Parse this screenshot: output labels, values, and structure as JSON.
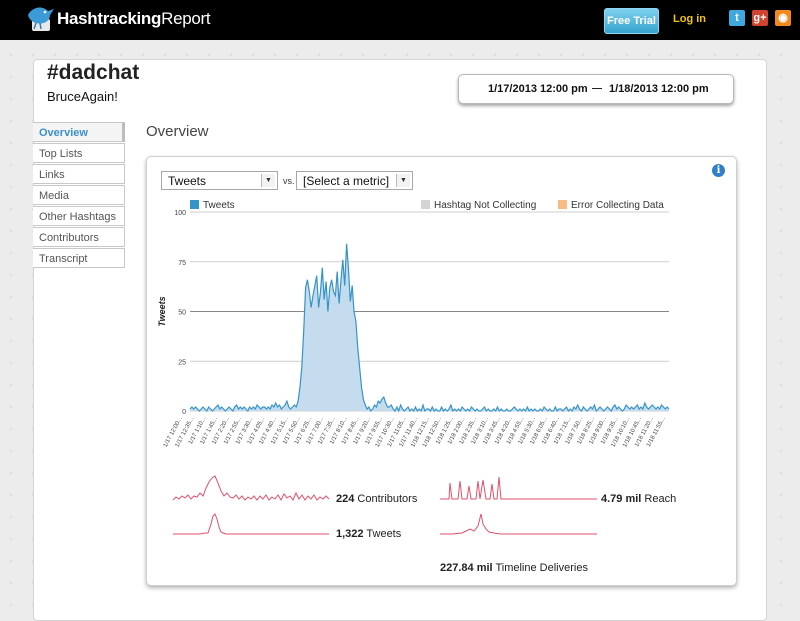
{
  "header": {
    "brand_bold": "Hashtracking",
    "brand_light": "Report",
    "free_trial": "Free Trial",
    "login": "Log in",
    "social": [
      {
        "name": "twitter-icon",
        "glyph": "t"
      },
      {
        "name": "google-plus-icon",
        "glyph": "g+"
      },
      {
        "name": "rss-icon",
        "glyph": "◉"
      }
    ]
  },
  "report": {
    "hashtag": "#dadchat",
    "user": "BruceAgain!",
    "date_start": "1/17/2013 12:00 pm",
    "date_end": "1/18/2013 12:00 pm"
  },
  "nav": {
    "items": [
      {
        "label": "Overview",
        "active": true
      },
      {
        "label": "Top Lists",
        "active": false
      },
      {
        "label": "Links",
        "active": false
      },
      {
        "label": "Media",
        "active": false
      },
      {
        "label": "Other Hashtags",
        "active": false
      },
      {
        "label": "Contributors",
        "active": false
      },
      {
        "label": "Transcript",
        "active": false
      }
    ]
  },
  "overview": {
    "title": "Overview",
    "metric_select": "Tweets",
    "vs_label": "vs.",
    "compare_select": "[Select a metric]",
    "info_icon": "i"
  },
  "colors": {
    "tweets": "#3594c7",
    "tweets_fill": "#c5dcef",
    "not_collecting": "#d4d4d4",
    "error": "#f7bc82",
    "sparkline": "#e0506b"
  },
  "chart_data": {
    "type": "area",
    "ylabel": "Tweets",
    "ylim": [
      0,
      100
    ],
    "yticks": [
      0,
      25,
      50,
      75,
      100
    ],
    "grid": true,
    "legend": [
      {
        "label": "Tweets",
        "color": "#3594c7"
      },
      {
        "label": "Hashtag Not Collecting",
        "color": "#d4d4d4"
      },
      {
        "label": "Error Collecting Data",
        "color": "#f7bc82"
      }
    ],
    "x_ticks": [
      "1/17 12:00...",
      "1/17 12:35...",
      "1/17 1:10...",
      "1/17 1:45...",
      "1/17 2:20...",
      "1/17 2:55...",
      "1/17 3:30...",
      "1/17 4:05...",
      "1/17 4:40...",
      "1/17 5:15...",
      "1/17 5:50...",
      "1/17 6:25...",
      "1/17 7:00...",
      "1/17 7:35...",
      "1/17 8:10...",
      "1/17 8:45...",
      "1/17 9:20...",
      "1/17 9:55...",
      "1/17 10:30...",
      "1/17 11:05...",
      "1/17 11:40...",
      "1/18 12:15...",
      "1/18 12:50...",
      "1/18 1:25...",
      "1/18 2:00...",
      "1/18 2:35...",
      "1/18 3:10...",
      "1/18 3:45...",
      "1/18 4:20...",
      "1/18 4:55...",
      "1/18 5:30...",
      "1/18 6:05...",
      "1/18 6:40...",
      "1/18 7:15...",
      "1/18 7:50...",
      "1/18 8:25...",
      "1/18 9:00...",
      "1/18 9:35...",
      "1/18 10:10...",
      "1/18 10:45...",
      "1/18 11:20...",
      "1/18 11:55..."
    ],
    "values": [
      1,
      2,
      1,
      2,
      1,
      0,
      1,
      2,
      1,
      0,
      2,
      1,
      0,
      1,
      2,
      3,
      1,
      2,
      1,
      0,
      1,
      2,
      1,
      0,
      2,
      3,
      1,
      2,
      1,
      2,
      1,
      0,
      2,
      1,
      2,
      1,
      3,
      2,
      1,
      2,
      2,
      1,
      2,
      1,
      3,
      2,
      4,
      2,
      3,
      1,
      2,
      3,
      5,
      2,
      1,
      2,
      3,
      2,
      5,
      12,
      22,
      40,
      62,
      66,
      60,
      52,
      58,
      63,
      68,
      52,
      60,
      72,
      56,
      65,
      50,
      62,
      66,
      60,
      58,
      70,
      54,
      66,
      76,
      63,
      84,
      72,
      55,
      63,
      50,
      45,
      32,
      22,
      12,
      6,
      3,
      1,
      2,
      0,
      1,
      3,
      2,
      5,
      4,
      6,
      7,
      4,
      2,
      2,
      3,
      1,
      0,
      2,
      0,
      3,
      1,
      0,
      1,
      2,
      0,
      1,
      0,
      2,
      0,
      1,
      0,
      3,
      0,
      1,
      1,
      0,
      2,
      0,
      1,
      0,
      0,
      2,
      0,
      1,
      0,
      1,
      3,
      0,
      1,
      0,
      1,
      0,
      2,
      1,
      0,
      1,
      0,
      2,
      1,
      0,
      1,
      0,
      0,
      1,
      2,
      0,
      1,
      0,
      0,
      1,
      0,
      2,
      0,
      1,
      0,
      0,
      1,
      0,
      0,
      1,
      2,
      1,
      0,
      1,
      0,
      1,
      0,
      2,
      0,
      1,
      0,
      1,
      0,
      0,
      1,
      0,
      2,
      1,
      0,
      1,
      0,
      0,
      2,
      0,
      1,
      1,
      0,
      1,
      2,
      0,
      1,
      0,
      2,
      1,
      3,
      1,
      0,
      2,
      1,
      0,
      1,
      2,
      1,
      3,
      0,
      1,
      2,
      1,
      0,
      1,
      2,
      1,
      0,
      2,
      3,
      1,
      2,
      1,
      0,
      1,
      3,
      2,
      1,
      2,
      1,
      2,
      3,
      1,
      2,
      1,
      4,
      2,
      1,
      2,
      3,
      2,
      1,
      2,
      1,
      3,
      2,
      1,
      2,
      1
    ]
  },
  "stats": {
    "contributors_value": "224",
    "contributors_label": "Contributors",
    "tweets_value": "1,322",
    "tweets_label": "Tweets",
    "reach_value": "4.79 mil",
    "reach_label": "Reach",
    "timeline_value": "227.84 mil",
    "timeline_label": "Timeline Deliveries"
  }
}
